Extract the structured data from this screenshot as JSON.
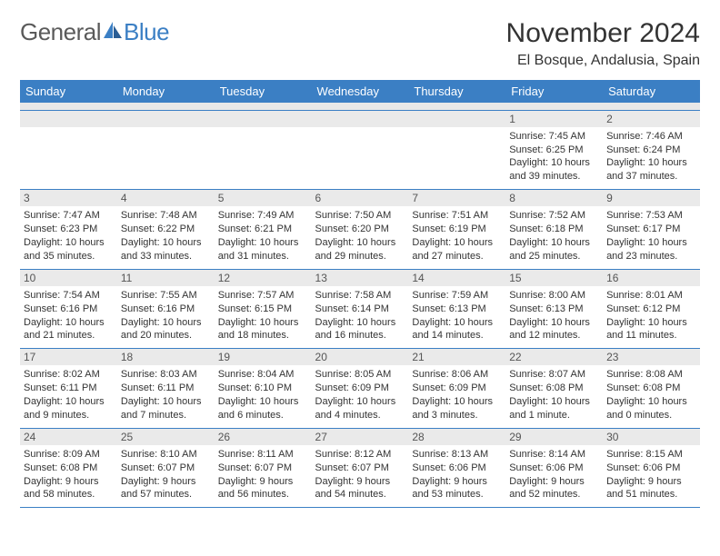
{
  "brand": {
    "text1": "General",
    "text2": "Blue"
  },
  "title": "November 2024",
  "location": "El Bosque, Andalusia, Spain",
  "colors": {
    "header_bg": "#3b7fc4",
    "header_fg": "#ffffff",
    "border": "#3b7fc4",
    "daynum_bg": "#eaeaea",
    "text": "#333333"
  },
  "day_headers": [
    "Sunday",
    "Monday",
    "Tuesday",
    "Wednesday",
    "Thursday",
    "Friday",
    "Saturday"
  ],
  "weeks": [
    [
      null,
      null,
      null,
      null,
      null,
      {
        "n": "1",
        "sunrise": "7:45 AM",
        "sunset": "6:25 PM",
        "day_h": 10,
        "day_m": 39
      },
      {
        "n": "2",
        "sunrise": "7:46 AM",
        "sunset": "6:24 PM",
        "day_h": 10,
        "day_m": 37
      }
    ],
    [
      {
        "n": "3",
        "sunrise": "7:47 AM",
        "sunset": "6:23 PM",
        "day_h": 10,
        "day_m": 35
      },
      {
        "n": "4",
        "sunrise": "7:48 AM",
        "sunset": "6:22 PM",
        "day_h": 10,
        "day_m": 33
      },
      {
        "n": "5",
        "sunrise": "7:49 AM",
        "sunset": "6:21 PM",
        "day_h": 10,
        "day_m": 31
      },
      {
        "n": "6",
        "sunrise": "7:50 AM",
        "sunset": "6:20 PM",
        "day_h": 10,
        "day_m": 29
      },
      {
        "n": "7",
        "sunrise": "7:51 AM",
        "sunset": "6:19 PM",
        "day_h": 10,
        "day_m": 27
      },
      {
        "n": "8",
        "sunrise": "7:52 AM",
        "sunset": "6:18 PM",
        "day_h": 10,
        "day_m": 25
      },
      {
        "n": "9",
        "sunrise": "7:53 AM",
        "sunset": "6:17 PM",
        "day_h": 10,
        "day_m": 23
      }
    ],
    [
      {
        "n": "10",
        "sunrise": "7:54 AM",
        "sunset": "6:16 PM",
        "day_h": 10,
        "day_m": 21
      },
      {
        "n": "11",
        "sunrise": "7:55 AM",
        "sunset": "6:16 PM",
        "day_h": 10,
        "day_m": 20
      },
      {
        "n": "12",
        "sunrise": "7:57 AM",
        "sunset": "6:15 PM",
        "day_h": 10,
        "day_m": 18
      },
      {
        "n": "13",
        "sunrise": "7:58 AM",
        "sunset": "6:14 PM",
        "day_h": 10,
        "day_m": 16
      },
      {
        "n": "14",
        "sunrise": "7:59 AM",
        "sunset": "6:13 PM",
        "day_h": 10,
        "day_m": 14
      },
      {
        "n": "15",
        "sunrise": "8:00 AM",
        "sunset": "6:13 PM",
        "day_h": 10,
        "day_m": 12
      },
      {
        "n": "16",
        "sunrise": "8:01 AM",
        "sunset": "6:12 PM",
        "day_h": 10,
        "day_m": 11
      }
    ],
    [
      {
        "n": "17",
        "sunrise": "8:02 AM",
        "sunset": "6:11 PM",
        "day_h": 10,
        "day_m": 9
      },
      {
        "n": "18",
        "sunrise": "8:03 AM",
        "sunset": "6:11 PM",
        "day_h": 10,
        "day_m": 7
      },
      {
        "n": "19",
        "sunrise": "8:04 AM",
        "sunset": "6:10 PM",
        "day_h": 10,
        "day_m": 6
      },
      {
        "n": "20",
        "sunrise": "8:05 AM",
        "sunset": "6:09 PM",
        "day_h": 10,
        "day_m": 4
      },
      {
        "n": "21",
        "sunrise": "8:06 AM",
        "sunset": "6:09 PM",
        "day_h": 10,
        "day_m": 3
      },
      {
        "n": "22",
        "sunrise": "8:07 AM",
        "sunset": "6:08 PM",
        "day_h": 10,
        "day_m": 1
      },
      {
        "n": "23",
        "sunrise": "8:08 AM",
        "sunset": "6:08 PM",
        "day_h": 10,
        "day_m": 0
      }
    ],
    [
      {
        "n": "24",
        "sunrise": "8:09 AM",
        "sunset": "6:08 PM",
        "day_h": 9,
        "day_m": 58
      },
      {
        "n": "25",
        "sunrise": "8:10 AM",
        "sunset": "6:07 PM",
        "day_h": 9,
        "day_m": 57
      },
      {
        "n": "26",
        "sunrise": "8:11 AM",
        "sunset": "6:07 PM",
        "day_h": 9,
        "day_m": 56
      },
      {
        "n": "27",
        "sunrise": "8:12 AM",
        "sunset": "6:07 PM",
        "day_h": 9,
        "day_m": 54
      },
      {
        "n": "28",
        "sunrise": "8:13 AM",
        "sunset": "6:06 PM",
        "day_h": 9,
        "day_m": 53
      },
      {
        "n": "29",
        "sunrise": "8:14 AM",
        "sunset": "6:06 PM",
        "day_h": 9,
        "day_m": 52
      },
      {
        "n": "30",
        "sunrise": "8:15 AM",
        "sunset": "6:06 PM",
        "day_h": 9,
        "day_m": 51
      }
    ]
  ]
}
